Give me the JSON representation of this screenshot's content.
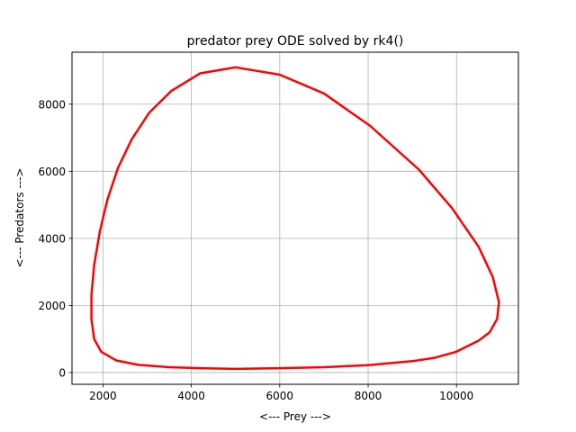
{
  "chart_data": {
    "type": "line",
    "title": "predator prey ODE solved by rk4()",
    "xlabel": "<--- Prey --->",
    "ylabel": "<--- Predators --->",
    "xlim": [
      1300,
      11400
    ],
    "ylim": [
      -350,
      9550
    ],
    "xticks": [
      {
        "value": 2000,
        "label": "2000"
      },
      {
        "value": 4000,
        "label": "4000"
      },
      {
        "value": 6000,
        "label": "6000"
      },
      {
        "value": 8000,
        "label": "8000"
      },
      {
        "value": 10000,
        "label": "10000"
      }
    ],
    "yticks": [
      {
        "value": 0,
        "label": "0"
      },
      {
        "value": 2000,
        "label": "2000"
      },
      {
        "value": 4000,
        "label": "4000"
      },
      {
        "value": 6000,
        "label": "6000"
      },
      {
        "value": 8000,
        "label": "8000"
      }
    ],
    "grid": true,
    "series": [
      {
        "color": "#ff0000",
        "points": [
          [
            5000,
            110
          ],
          [
            6000,
            130
          ],
          [
            7000,
            160
          ],
          [
            8000,
            220
          ],
          [
            9000,
            340
          ],
          [
            9500,
            440
          ],
          [
            10000,
            620
          ],
          [
            10300,
            820
          ],
          [
            10500,
            950
          ],
          [
            10750,
            1200
          ],
          [
            10920,
            1600
          ],
          [
            10960,
            2100
          ],
          [
            10820,
            2850
          ],
          [
            10500,
            3750
          ],
          [
            9900,
            4900
          ],
          [
            9150,
            6050
          ],
          [
            8050,
            7350
          ],
          [
            7000,
            8320
          ],
          [
            6000,
            8880
          ],
          [
            5000,
            9100
          ],
          [
            4200,
            8920
          ],
          [
            3550,
            8400
          ],
          [
            3050,
            7750
          ],
          [
            2650,
            6950
          ],
          [
            2340,
            6100
          ],
          [
            2100,
            5150
          ],
          [
            1930,
            4200
          ],
          [
            1800,
            3200
          ],
          [
            1740,
            2300
          ],
          [
            1740,
            1600
          ],
          [
            1800,
            1000
          ],
          [
            1960,
            620
          ],
          [
            2300,
            360
          ],
          [
            2800,
            230
          ],
          [
            3500,
            160
          ],
          [
            4200,
            130
          ],
          [
            5000,
            110
          ]
        ]
      }
    ]
  }
}
